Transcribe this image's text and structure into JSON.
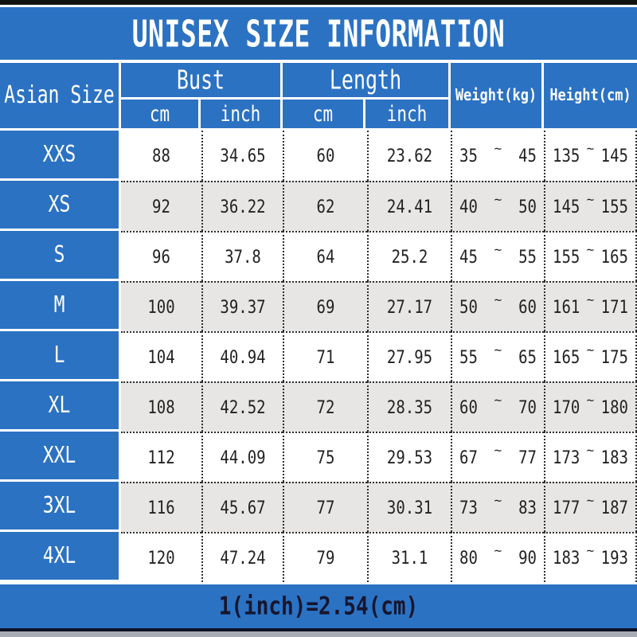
{
  "title": "UNISEX SIZE INFORMATION",
  "header": {
    "size_col": "Asian Size",
    "bust": "Bust",
    "length": "Length",
    "cm": "cm",
    "inch": "inch",
    "weight": "Weight(kg)",
    "height": "Height(cm)"
  },
  "tilde": "~",
  "footer": "1(inch)=2.54(cm)",
  "colors": {
    "blue": "#2b72c3",
    "row_alt": "#e7e6e4",
    "ink": "#222222",
    "footer_ink": "#16162e"
  },
  "chart_data": {
    "type": "table",
    "title": "UNISEX SIZE INFORMATION",
    "columns": [
      "Asian Size",
      "Bust cm",
      "Bust inch",
      "Length cm",
      "Length inch",
      "Weight(kg) min",
      "Weight(kg) max",
      "Height(cm) min",
      "Height(cm) max"
    ],
    "rows": [
      [
        "XXS",
        "88",
        "34.65",
        "60",
        "23.62",
        "35",
        "45",
        "135",
        "145"
      ],
      [
        "XS",
        "92",
        "36.22",
        "62",
        "24.41",
        "40",
        "50",
        "145",
        "155"
      ],
      [
        "S",
        "96",
        "37.8",
        "64",
        "25.2",
        "45",
        "55",
        "155",
        "165"
      ],
      [
        "M",
        "100",
        "39.37",
        "69",
        "27.17",
        "50",
        "60",
        "161",
        "171"
      ],
      [
        "L",
        "104",
        "40.94",
        "71",
        "27.95",
        "55",
        "65",
        "165",
        "175"
      ],
      [
        "XL",
        "108",
        "42.52",
        "72",
        "28.35",
        "60",
        "70",
        "170",
        "180"
      ],
      [
        "XXL",
        "112",
        "44.09",
        "75",
        "29.53",
        "67",
        "77",
        "173",
        "183"
      ],
      [
        "3XL",
        "116",
        "45.67",
        "77",
        "30.31",
        "73",
        "83",
        "177",
        "187"
      ],
      [
        "4XL",
        "120",
        "47.24",
        "79",
        "31.1",
        "80",
        "90",
        "183",
        "193"
      ]
    ],
    "note": "1(inch)=2.54(cm)"
  }
}
